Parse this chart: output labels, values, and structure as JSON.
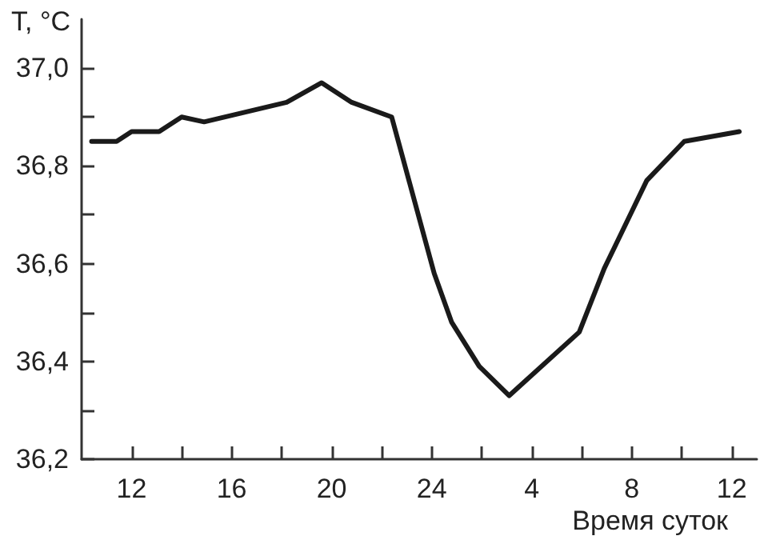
{
  "chart_data": {
    "type": "line",
    "xlabel": "Время суток",
    "ylabel": "T, °C",
    "x": [
      "--01-01T10:24",
      "--01-01T11:24",
      "--01-01T12:00",
      "--01-01T13:06",
      "--01-01T14:00",
      "--01-01T14:54",
      "--01-01T18:12",
      "--01-01T19:36",
      "--01-01T20:48",
      "--01-01T22:24",
      "--01-02T00:06",
      "--01-02T00:48",
      "--01-02T01:54",
      "--01-02T03:06",
      "--01-02T05:54",
      "--01-02T06:54",
      "--01-02T08:36",
      "--01-02T10:06",
      "--01-02T12:18"
    ],
    "series": [
      {
        "color": "#1a1a1a",
        "values": [
          36.85,
          36.85,
          36.87,
          36.87,
          36.9,
          36.89,
          36.93,
          36.97,
          36.93,
          36.9,
          36.58,
          36.48,
          36.39,
          36.33,
          36.46,
          36.59,
          36.77,
          36.85,
          36.87
        ]
      }
    ],
    "xlim": [
      "--01-01T10:00",
      "--01-02T13:00"
    ],
    "xticks": [
      {
        "value": "--01-01T12:00",
        "label": "12"
      },
      {
        "value": "--01-01T14:00",
        "label": null
      },
      {
        "value": "--01-01T16:00",
        "label": "16"
      },
      {
        "value": "--01-01T18:00",
        "label": null
      },
      {
        "value": "--01-01T20:00",
        "label": "20"
      },
      {
        "value": "--01-01T22:00",
        "label": null
      },
      {
        "value": "--01-02T00:00",
        "label": "24"
      },
      {
        "value": "--01-02T02:00",
        "label": null
      },
      {
        "value": "--01-02T04:00",
        "label": "4"
      },
      {
        "value": "--01-02T06:00",
        "label": null
      },
      {
        "value": "--01-02T08:00",
        "label": "8"
      },
      {
        "value": "--01-02T10:00",
        "label": null
      },
      {
        "value": "--01-02T12:00",
        "label": "12"
      }
    ],
    "ylim": [
      36.2,
      37.1
    ],
    "yticks": [
      {
        "value": 36.2,
        "label": "36,2"
      },
      {
        "value": 36.3,
        "label": null
      },
      {
        "value": 36.4,
        "label": "36,4"
      },
      {
        "value": 36.5,
        "label": null
      },
      {
        "value": 36.6,
        "label": "36,6"
      },
      {
        "value": 36.7,
        "label": null
      },
      {
        "value": 36.8,
        "label": "36,8"
      },
      {
        "value": 36.9,
        "label": null
      },
      {
        "value": 37.0,
        "label": "37,0"
      }
    ],
    "grid": false,
    "marker": "none",
    "line_style": "solid"
  }
}
